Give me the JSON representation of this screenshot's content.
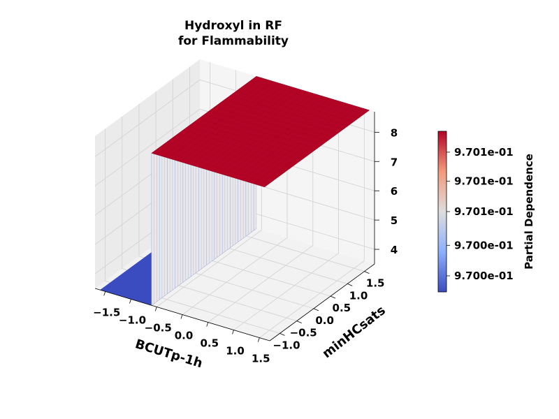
{
  "chart_data": {
    "type": "surface3d",
    "title_lines": [
      "Hydroxyl in RF",
      "for Flammability"
    ],
    "xlabel": "BCUTp-1h",
    "ylabel": "minHCsats",
    "zlabel": "",
    "x_ticks": [
      "−1.5",
      "−1.0",
      "−0.5",
      "0.0",
      "0.5",
      "1.0",
      "1.5"
    ],
    "x_tick_values": [
      -1.5,
      -1.0,
      -0.5,
      0.0,
      0.5,
      1.0,
      1.5
    ],
    "y_ticks": [
      "−1.0",
      "−0.5",
      "0.0",
      "0.5",
      "1.0",
      "1.5"
    ],
    "y_tick_values": [
      -1.0,
      -0.5,
      0.0,
      0.5,
      1.0,
      1.5
    ],
    "z_ticks": [
      "4",
      "5",
      "6",
      "7",
      "8"
    ],
    "z_tick_values": [
      4,
      5,
      6,
      7,
      8
    ],
    "xlim": [
      -1.7,
      1.7
    ],
    "ylim": [
      -1.3,
      1.8
    ],
    "zlim": [
      3.5,
      8.7
    ],
    "surface": {
      "x_step": -0.6,
      "low_region": {
        "x_range": [
          -1.6,
          -0.6
        ],
        "y_range": [
          -1.3,
          1.8
        ],
        "z": 3.5,
        "color": "#3b4cc0"
      },
      "high_region": {
        "x_range": [
          -0.6,
          1.6
        ],
        "y_range": [
          -1.3,
          1.8
        ],
        "z": 8.7,
        "color": "#b40426"
      }
    },
    "colorbar": {
      "label": "Partial Dependence",
      "colormap": "coolwarm",
      "ticks": [
        "9.700e-01",
        "9.700e-01",
        "9.701e-01",
        "9.701e-01",
        "9.701e-01"
      ],
      "tick_fractions": [
        0.1,
        0.29,
        0.5,
        0.69,
        0.87
      ],
      "min_color": "#3b4cc0",
      "mid_color": "#dddddd",
      "max_color": "#b40426"
    },
    "grid": true
  }
}
